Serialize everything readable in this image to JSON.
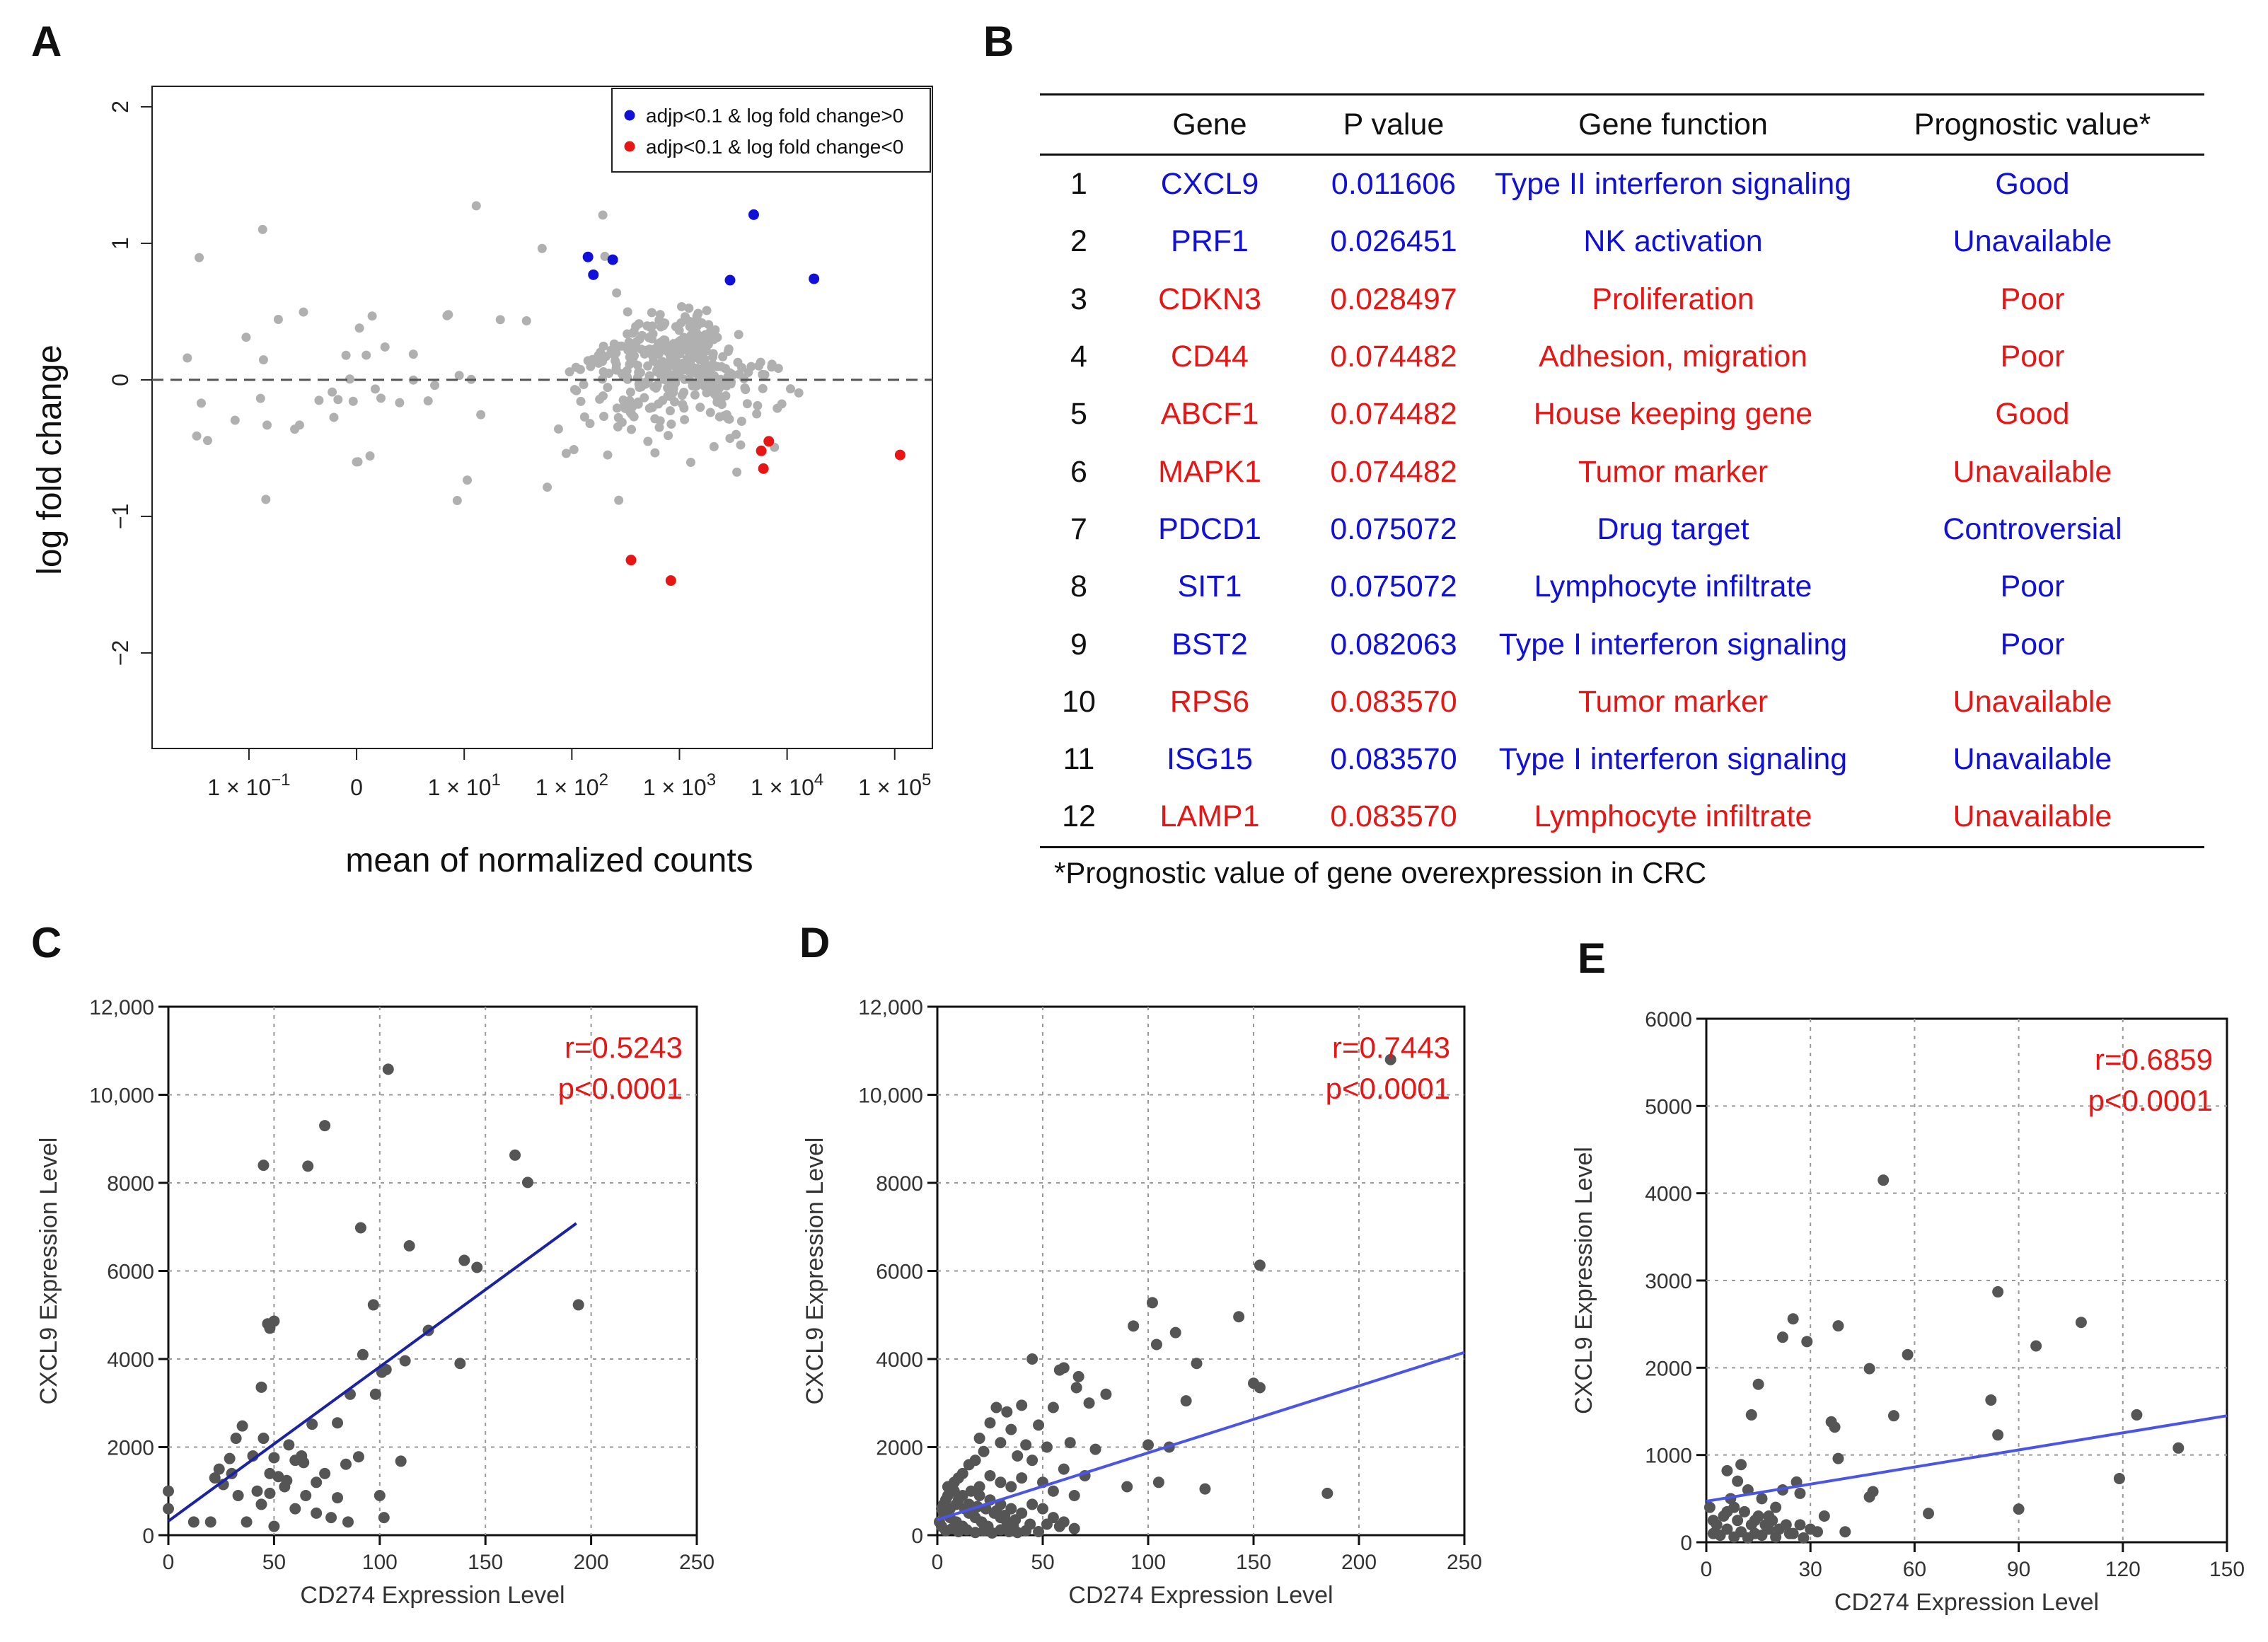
{
  "panels": {
    "a": "A",
    "b": "B",
    "c": "C",
    "d": "D",
    "e": "E"
  },
  "colors": {
    "blue": "#1010d8",
    "red": "#e81515",
    "grey": "#b0b0b0",
    "dark_point": "#555555",
    "fit_c": "#1a22a8",
    "fit_de": "#4a55e8"
  },
  "table": {
    "headers": {
      "index": "",
      "gene": "Gene",
      "p": "P value",
      "function": "Gene function",
      "prognostic": "Prognostic value*"
    },
    "rows": [
      {
        "i": "1",
        "gene": "CXCL9",
        "p": "0.011606",
        "function": "Type II interferon signaling",
        "prognostic": "Good",
        "color": "blue"
      },
      {
        "i": "2",
        "gene": "PRF1",
        "p": "0.026451",
        "function": "NK activation",
        "prognostic": "Unavailable",
        "color": "blue"
      },
      {
        "i": "3",
        "gene": "CDKN3",
        "p": "0.028497",
        "function": "Proliferation",
        "prognostic": "Poor",
        "color": "red"
      },
      {
        "i": "4",
        "gene": "CD44",
        "p": "0.074482",
        "function": "Adhesion, migration",
        "prognostic": "Poor",
        "color": "red"
      },
      {
        "i": "5",
        "gene": "ABCF1",
        "p": "0.074482",
        "function": "House keeping gene",
        "prognostic": "Good",
        "color": "red"
      },
      {
        "i": "6",
        "gene": "MAPK1",
        "p": "0.074482",
        "function": "Tumor marker",
        "prognostic": "Unavailable",
        "color": "red"
      },
      {
        "i": "7",
        "gene": "PDCD1",
        "p": "0.075072",
        "function": "Drug target",
        "prognostic": "Controversial",
        "color": "blue"
      },
      {
        "i": "8",
        "gene": "SIT1",
        "p": "0.075072",
        "function": "Lymphocyte infiltrate",
        "prognostic": "Poor",
        "color": "blue"
      },
      {
        "i": "9",
        "gene": "BST2",
        "p": "0.082063",
        "function": "Type I interferon signaling",
        "prognostic": "Poor",
        "color": "blue"
      },
      {
        "i": "10",
        "gene": "RPS6",
        "p": "0.083570",
        "function": "Tumor marker",
        "prognostic": "Unavailable",
        "color": "red"
      },
      {
        "i": "11",
        "gene": "ISG15",
        "p": "0.083570",
        "function": "Type I interferon signaling",
        "prognostic": "Unavailable",
        "color": "blue"
      },
      {
        "i": "12",
        "gene": "LAMP1",
        "p": "0.083570",
        "function": "Lymphocyte infiltrate",
        "prognostic": "Unavailable",
        "color": "red"
      }
    ],
    "footnote": "*Prognostic value of gene overexpression in CRC"
  },
  "chart_data": [
    {
      "id": "A",
      "type": "scatter",
      "title": "",
      "xlabel": "mean of normalized counts",
      "ylabel": "log fold change",
      "x_scale": "log (custom)",
      "x_ticks": [
        {
          "v": -1,
          "mant": "1 × 10",
          "exp": "−1"
        },
        {
          "v": 0,
          "mant": "0",
          "exp": ""
        },
        {
          "v": 1,
          "mant": "1 × 10",
          "exp": "1"
        },
        {
          "v": 2,
          "mant": "1 × 10",
          "exp": "2"
        },
        {
          "v": 3,
          "mant": "1 × 10",
          "exp": "3"
        },
        {
          "v": 4,
          "mant": "1 × 10",
          "exp": "4"
        },
        {
          "v": 5,
          "mant": "1 × 10",
          "exp": "5"
        }
      ],
      "y_ticks": [
        {
          "v": -2,
          "label": "−2"
        },
        {
          "v": -1,
          "label": "−1"
        },
        {
          "v": 0,
          "label": "0"
        },
        {
          "v": 1,
          "label": "1"
        },
        {
          "v": 2,
          "label": "2"
        }
      ],
      "xlim": [
        -1.9,
        5.35
      ],
      "ylim": [
        -2.7,
        2.15
      ],
      "reference_line_y": 0,
      "legend": {
        "position": "top-right",
        "entries": [
          {
            "label": "adjp<0.1 & log fold change>0",
            "color": "blue"
          },
          {
            "label": "adjp<0.1 & log fold change<0",
            "color": "red"
          }
        ]
      },
      "series_up": [
        [
          2.15,
          0.9
        ],
        [
          2.2,
          0.77
        ],
        [
          2.38,
          0.88
        ],
        [
          3.47,
          0.73
        ],
        [
          3.69,
          1.21
        ],
        [
          4.25,
          0.74
        ]
      ],
      "series_down": [
        [
          2.55,
          -1.32
        ],
        [
          2.92,
          -1.47
        ],
        [
          3.76,
          -0.52
        ],
        [
          3.83,
          -0.45
        ],
        [
          3.78,
          -0.65
        ],
        [
          5.05,
          -0.55
        ]
      ]
    },
    {
      "id": "C",
      "type": "scatter",
      "xlabel": "CD274 Expression Level",
      "ylabel": "CXCL9 Expression Level",
      "xlim": [
        0,
        250
      ],
      "ylim": [
        0,
        12000
      ],
      "x_ticks": [
        0,
        50,
        100,
        150,
        200,
        250
      ],
      "y_ticks": [
        0,
        2000,
        4000,
        6000,
        8000,
        10000,
        12000
      ],
      "y_tick_labels": [
        "0",
        "2000",
        "4000",
        "6000",
        "8000",
        "10,000",
        "12,000"
      ],
      "grid": true,
      "annotation": [
        "r=0.5243",
        "p<0.0001"
      ],
      "fit": {
        "x": [
          0,
          193
        ],
        "y": [
          320,
          7080
        ]
      },
      "points": [
        [
          104,
          10580
        ],
        [
          74,
          9300
        ],
        [
          45,
          8400
        ],
        [
          66,
          8380
        ],
        [
          164,
          8630
        ],
        [
          170,
          8010
        ],
        [
          91,
          6980
        ],
        [
          114,
          6570
        ],
        [
          140,
          6240
        ],
        [
          146,
          6080
        ],
        [
          97,
          5230
        ],
        [
          194,
          5230
        ],
        [
          50,
          4860
        ],
        [
          47,
          4800
        ],
        [
          48,
          4700
        ],
        [
          123,
          4650
        ],
        [
          92,
          4100
        ],
        [
          112,
          3960
        ],
        [
          103,
          3760
        ],
        [
          101,
          3700
        ],
        [
          138,
          3900
        ],
        [
          44,
          3360
        ],
        [
          98,
          3200
        ],
        [
          86,
          3200
        ],
        [
          80,
          2550
        ],
        [
          68,
          2520
        ],
        [
          35,
          2480
        ],
        [
          32,
          2200
        ],
        [
          45,
          2200
        ],
        [
          57,
          2050
        ],
        [
          63,
          1800
        ],
        [
          29,
          1740
        ],
        [
          40,
          1800
        ],
        [
          50,
          1760
        ],
        [
          60,
          1700
        ],
        [
          64,
          1650
        ],
        [
          90,
          1780
        ],
        [
          110,
          1680
        ],
        [
          84,
          1610
        ],
        [
          74,
          1400
        ],
        [
          24,
          1500
        ],
        [
          30,
          1400
        ],
        [
          48,
          1400
        ],
        [
          52,
          1330
        ],
        [
          56,
          1240
        ],
        [
          70,
          1200
        ],
        [
          26,
          1150
        ],
        [
          22,
          1300
        ],
        [
          42,
          1000
        ],
        [
          48,
          950
        ],
        [
          33,
          900
        ],
        [
          55,
          1100
        ],
        [
          65,
          900
        ],
        [
          80,
          850
        ],
        [
          100,
          900
        ],
        [
          44,
          700
        ],
        [
          60,
          600
        ],
        [
          70,
          500
        ],
        [
          77,
          400
        ],
        [
          85,
          300
        ],
        [
          102,
          400
        ],
        [
          20,
          300
        ],
        [
          37,
          300
        ],
        [
          50,
          200
        ],
        [
          0,
          1000
        ],
        [
          0,
          600
        ],
        [
          12,
          300
        ]
      ]
    },
    {
      "id": "D",
      "type": "scatter",
      "xlabel": "CD274 Expression Level",
      "ylabel": "CXCL9 Expression Level",
      "xlim": [
        0,
        250
      ],
      "ylim": [
        0,
        12000
      ],
      "x_ticks": [
        0,
        50,
        100,
        150,
        200,
        250
      ],
      "y_ticks": [
        0,
        2000,
        4000,
        6000,
        8000,
        10000,
        12000
      ],
      "y_tick_labels": [
        "0",
        "2000",
        "4000",
        "6000",
        "8000",
        "10,000",
        "12,000"
      ],
      "grid": true,
      "annotation": [
        "r=0.7443",
        "p<0.0001"
      ],
      "fit": {
        "x": [
          0,
          250
        ],
        "y": [
          350,
          4150
        ]
      },
      "points": [
        [
          215,
          10800
        ],
        [
          153,
          6130
        ],
        [
          143,
          4960
        ],
        [
          102,
          5280
        ],
        [
          113,
          4600
        ],
        [
          93,
          4750
        ],
        [
          104,
          4330
        ],
        [
          123,
          3900
        ],
        [
          150,
          3450
        ],
        [
          153,
          3350
        ],
        [
          60,
          3800
        ],
        [
          58,
          3750
        ],
        [
          45,
          4000
        ],
        [
          67,
          3600
        ],
        [
          66,
          3350
        ],
        [
          80,
          3200
        ],
        [
          118,
          3050
        ],
        [
          72,
          3000
        ],
        [
          55,
          2900
        ],
        [
          40,
          2950
        ],
        [
          28,
          2900
        ],
        [
          33,
          2800
        ],
        [
          25,
          2550
        ],
        [
          35,
          2400
        ],
        [
          48,
          2500
        ],
        [
          20,
          2200
        ],
        [
          30,
          2100
        ],
        [
          42,
          2050
        ],
        [
          52,
          2000
        ],
        [
          63,
          2100
        ],
        [
          75,
          1950
        ],
        [
          100,
          2050
        ],
        [
          110,
          2000
        ],
        [
          22,
          1900
        ],
        [
          18,
          1700
        ],
        [
          38,
          1800
        ],
        [
          45,
          1700
        ],
        [
          60,
          1500
        ],
        [
          70,
          1350
        ],
        [
          90,
          1100
        ],
        [
          105,
          1200
        ],
        [
          127,
          1050
        ],
        [
          185,
          950
        ],
        [
          15,
          1600
        ],
        [
          12,
          1400
        ],
        [
          10,
          1300
        ],
        [
          8,
          1200
        ],
        [
          25,
          1350
        ],
        [
          30,
          1200
        ],
        [
          35,
          1100
        ],
        [
          40,
          1300
        ],
        [
          50,
          1200
        ],
        [
          55,
          1000
        ],
        [
          65,
          900
        ],
        [
          5,
          900
        ],
        [
          10,
          800
        ],
        [
          15,
          700
        ],
        [
          20,
          900
        ],
        [
          25,
          800
        ],
        [
          30,
          700
        ],
        [
          35,
          600
        ],
        [
          40,
          500
        ],
        [
          45,
          700
        ],
        [
          50,
          600
        ],
        [
          55,
          400
        ],
        [
          60,
          300
        ],
        [
          3,
          500
        ],
        [
          6,
          400
        ],
        [
          9,
          300
        ],
        [
          12,
          200
        ],
        [
          15,
          500
        ],
        [
          18,
          400
        ],
        [
          21,
          300
        ],
        [
          24,
          200
        ],
        [
          27,
          500
        ],
        [
          30,
          400
        ],
        [
          33,
          300
        ],
        [
          36,
          200
        ],
        [
          2,
          200
        ],
        [
          4,
          100
        ],
        [
          7,
          150
        ],
        [
          10,
          80
        ],
        [
          14,
          120
        ],
        [
          18,
          60
        ],
        [
          22,
          100
        ],
        [
          26,
          50
        ],
        [
          30,
          120
        ],
        [
          34,
          80
        ],
        [
          38,
          60
        ],
        [
          42,
          100
        ],
        [
          48,
          80
        ],
        [
          5,
          1100
        ],
        [
          8,
          1000
        ],
        [
          12,
          900
        ],
        [
          16,
          1000
        ],
        [
          20,
          1100
        ],
        [
          3,
          700
        ],
        [
          6,
          600
        ],
        [
          9,
          700
        ],
        [
          1,
          300
        ],
        [
          2,
          600
        ],
        [
          4,
          800
        ],
        [
          13,
          600
        ],
        [
          17,
          550
        ],
        [
          19,
          650
        ],
        [
          23,
          600
        ],
        [
          28,
          550
        ],
        [
          32,
          450
        ],
        [
          37,
          350
        ],
        [
          44,
          250
        ],
        [
          52,
          250
        ],
        [
          58,
          200
        ],
        [
          65,
          150
        ]
      ]
    },
    {
      "id": "E",
      "type": "scatter",
      "xlabel": "CD274 Expression Level",
      "ylabel": "CXCL9 Expression Level",
      "xlim": [
        0,
        150
      ],
      "ylim": [
        0,
        6000
      ],
      "x_ticks": [
        0,
        30,
        60,
        90,
        120,
        150
      ],
      "y_ticks": [
        0,
        1000,
        2000,
        3000,
        4000,
        5000,
        6000
      ],
      "y_tick_labels": [
        "0",
        "1000",
        "2000",
        "3000",
        "4000",
        "5000",
        "6000"
      ],
      "grid": true,
      "annotation": [
        "r=0.6859",
        "p<0.0001"
      ],
      "fit": {
        "x": [
          0,
          150
        ],
        "y": [
          470,
          1450
        ]
      },
      "points": [
        [
          51,
          4150
        ],
        [
          84,
          2870
        ],
        [
          25,
          2560
        ],
        [
          108,
          2520
        ],
        [
          29,
          2300
        ],
        [
          38,
          2480
        ],
        [
          22,
          2350
        ],
        [
          95,
          2250
        ],
        [
          58,
          2150
        ],
        [
          47,
          1990
        ],
        [
          15,
          1810
        ],
        [
          82,
          1630
        ],
        [
          54,
          1450
        ],
        [
          124,
          1460
        ],
        [
          36,
          1380
        ],
        [
          37,
          1320
        ],
        [
          136,
          1080
        ],
        [
          13,
          1460
        ],
        [
          84,
          1230
        ],
        [
          119,
          730
        ],
        [
          90,
          380
        ],
        [
          64,
          330
        ],
        [
          48,
          580
        ],
        [
          47,
          520
        ],
        [
          38,
          960
        ],
        [
          26,
          690
        ],
        [
          27,
          560
        ],
        [
          34,
          300
        ],
        [
          40,
          120
        ],
        [
          10,
          890
        ],
        [
          6,
          820
        ],
        [
          9,
          700
        ],
        [
          12,
          600
        ],
        [
          16,
          500
        ],
        [
          20,
          400
        ],
        [
          22,
          600
        ],
        [
          18,
          300
        ],
        [
          14,
          250
        ],
        [
          8,
          400
        ],
        [
          5,
          300
        ],
        [
          3,
          200
        ],
        [
          2,
          100
        ],
        [
          4,
          80
        ],
        [
          6,
          150
        ],
        [
          8,
          60
        ],
        [
          10,
          120
        ],
        [
          12,
          50
        ],
        [
          14,
          100
        ],
        [
          16,
          80
        ],
        [
          18,
          150
        ],
        [
          20,
          60
        ],
        [
          24,
          100
        ],
        [
          28,
          50
        ],
        [
          30,
          150
        ],
        [
          1,
          400
        ],
        [
          2,
          250
        ],
        [
          7,
          500
        ],
        [
          11,
          350
        ],
        [
          13,
          200
        ],
        [
          15,
          300
        ],
        [
          17,
          200
        ],
        [
          19,
          250
        ],
        [
          21,
          150
        ],
        [
          23,
          200
        ],
        [
          25,
          100
        ],
        [
          27,
          200
        ],
        [
          32,
          120
        ],
        [
          6,
          350
        ],
        [
          9,
          250
        ]
      ]
    }
  ]
}
